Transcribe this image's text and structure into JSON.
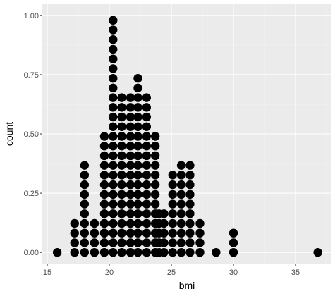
{
  "chart_data": {
    "type": "dotplot",
    "xlabel": "bmi",
    "ylabel": "count",
    "xlim": [
      14.6,
      37.9
    ],
    "ylim": [
      -0.05,
      1.05
    ],
    "x_ticks": [
      15,
      20,
      25,
      30,
      35
    ],
    "y_ticks": [
      0.0,
      0.25,
      0.5,
      0.75,
      1.0
    ],
    "y_tick_labels": [
      "0.00",
      "0.25",
      "0.50",
      "0.75",
      "1.00"
    ],
    "dot_step": 0.0408,
    "stacks": [
      {
        "x": 15.8,
        "count": 1
      },
      {
        "x": 17.2,
        "count": 4
      },
      {
        "x": 18.0,
        "count": 10
      },
      {
        "x": 18.8,
        "count": 4
      },
      {
        "x": 19.6,
        "count": 5
      },
      {
        "x": 19.6,
        "count": 13
      },
      {
        "x": 20.3,
        "count": 25
      },
      {
        "x": 21.0,
        "count": 17
      },
      {
        "x": 21.7,
        "count": 17
      },
      {
        "x": 22.3,
        "count": 19
      },
      {
        "x": 23.0,
        "count": 17
      },
      {
        "x": 23.7,
        "count": 13
      },
      {
        "x": 24.0,
        "count": 5
      },
      {
        "x": 24.4,
        "count": 5
      },
      {
        "x": 25.1,
        "count": 9
      },
      {
        "x": 25.8,
        "count": 10
      },
      {
        "x": 26.5,
        "count": 10
      },
      {
        "x": 27.3,
        "count": 4
      },
      {
        "x": 28.6,
        "count": 1
      },
      {
        "x": 30.0,
        "count": 3
      },
      {
        "x": 36.8,
        "count": 1
      }
    ],
    "colors": {
      "panel": "#ebebeb",
      "grid_major": "#ffffff",
      "grid_minor": "#f5f5f5",
      "dot": "#000000",
      "tick": "#333333",
      "tick_text": "#4d4d4d"
    },
    "grid": true,
    "legend": "none"
  }
}
